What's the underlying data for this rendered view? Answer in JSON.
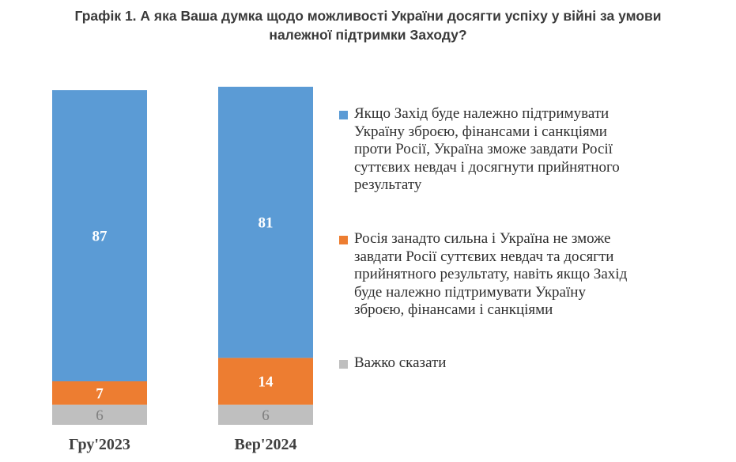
{
  "title_lines": [
    "Графік 1. А яка Ваша думка щодо можливості України досягти успіху у війні за умови",
    "належної підтримки Заходу?"
  ],
  "colors": {
    "blue": "#5b9bd5",
    "orange": "#ed7d31",
    "gray": "#bfbfbf"
  },
  "chart_data": {
    "type": "bar",
    "stacked": true,
    "categories": [
      "Гру'2023",
      "Вер'2024"
    ],
    "ylim": [
      0,
      100
    ],
    "series": [
      {
        "name": "Важко сказати",
        "color": "#bfbfbf",
        "values": [
          6,
          6
        ]
      },
      {
        "name": "Росія занадто сильна і Україна не зможе завдати Росії суттєвих невдач та досягти прийнятного результату, навіть якщо Захід буде належно підтримувати Україну зброєю, фінансами і санкціями",
        "color": "#ed7d31",
        "values": [
          7,
          14
        ]
      },
      {
        "name": "Якщо Захід буде належно підтримувати Україну зброєю, фінансами і санкціями проти Росії, Україна зможе завдати Росії суттєвих невдач і досягнути прийнятного результату",
        "color": "#5b9bd5",
        "values": [
          87,
          81
        ]
      }
    ],
    "data_labels": true,
    "legend_position": "right"
  },
  "legend": [
    {
      "key": "positive",
      "color": "#5b9bd5",
      "lines": [
        "Якщо Захід буде належно підтримувати",
        "Україну зброєю, фінансами і санкціями",
        "проти Росії, Україна зможе завдати Росії",
        "суттєвих невдач і досягнути прийнятного",
        "результату"
      ]
    },
    {
      "key": "negative",
      "color": "#ed7d31",
      "lines": [
        "Росія занадто сильна і Україна не зможе",
        "завдати Росії суттєвих невдач та досягти",
        "прийнятного результату, навіть якщо Захід",
        "буде належно підтримувати Україну",
        "зброєю, фінансами і санкціями"
      ]
    },
    {
      "key": "unsure",
      "color": "#bfbfbf",
      "lines": [
        "Важко сказати"
      ]
    }
  ]
}
